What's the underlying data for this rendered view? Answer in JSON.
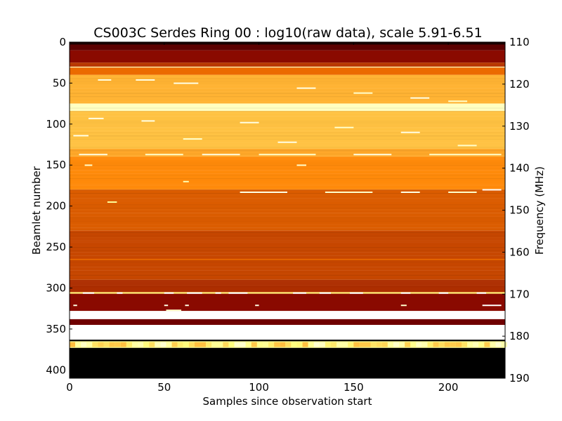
{
  "chart_data": {
    "type": "heatmap",
    "title": "CS003C Serdes Ring 00 : log10(raw data), scale 5.91-6.51",
    "xlabel": "Samples since observation start",
    "ylabel": "Beamlet number",
    "ylabel_right": "Frequency (MHz)",
    "xlim": [
      0,
      230
    ],
    "ylim": [
      410,
      0
    ],
    "ylim_right": [
      190,
      110
    ],
    "xticks": [
      0,
      50,
      100,
      150,
      200
    ],
    "yticks": [
      0,
      50,
      100,
      150,
      200,
      250,
      300,
      350,
      400
    ],
    "yticks_right": [
      110,
      120,
      130,
      140,
      150,
      160,
      170,
      180,
      190
    ],
    "colormap": "afmhot",
    "value_scale": [
      5.91,
      6.51
    ],
    "bands": [
      {
        "from": 0,
        "to": 3,
        "value": 0.05
      },
      {
        "from": 3,
        "to": 10,
        "value": 0.18
      },
      {
        "from": 10,
        "to": 25,
        "value": 0.27
      },
      {
        "from": 25,
        "to": 30,
        "value": 0.36
      },
      {
        "from": 30,
        "to": 31,
        "value": 0.88
      },
      {
        "from": 31,
        "to": 40,
        "value": 0.46
      },
      {
        "from": 40,
        "to": 75,
        "value": 0.6
      },
      {
        "from": 75,
        "to": 84,
        "value": 0.88
      },
      {
        "from": 84,
        "to": 130,
        "value": 0.63
      },
      {
        "from": 130,
        "to": 140,
        "value": 0.58
      },
      {
        "from": 140,
        "to": 180,
        "value": 0.52
      },
      {
        "from": 180,
        "to": 230,
        "value": 0.43
      },
      {
        "from": 230,
        "to": 290,
        "value": 0.39
      },
      {
        "from": 290,
        "to": 305,
        "value": 0.34
      },
      {
        "from": 305,
        "to": 307,
        "value": 0.7
      },
      {
        "from": 307,
        "to": 328,
        "value": 0.27
      },
      {
        "from": 328,
        "to": 338,
        "value": 1.0
      },
      {
        "from": 338,
        "to": 345,
        "value": 0.22
      },
      {
        "from": 345,
        "to": 363,
        "value": 1.0
      },
      {
        "from": 363,
        "to": 365,
        "value": 0.0
      },
      {
        "from": 365,
        "to": 373,
        "value": 0.78
      },
      {
        "from": 373,
        "to": 410,
        "value": 0.0
      }
    ],
    "speckles": [
      [
        306,
        7,
        13,
        1
      ],
      [
        306,
        25,
        28,
        1
      ],
      [
        306,
        50,
        55,
        1
      ],
      [
        306,
        62,
        70,
        1
      ],
      [
        306,
        77,
        80,
        1
      ],
      [
        306,
        84,
        94,
        1
      ],
      [
        306,
        118,
        125,
        1
      ],
      [
        306,
        132,
        138,
        1
      ],
      [
        306,
        148,
        155,
        1
      ],
      [
        306,
        175,
        180,
        1
      ],
      [
        306,
        195,
        200,
        1
      ],
      [
        306,
        215,
        220,
        1
      ],
      [
        321,
        2,
        4,
        0.95
      ],
      [
        321,
        50,
        52,
        0.95
      ],
      [
        321,
        61,
        63,
        0.95
      ],
      [
        321,
        98,
        100,
        0.95
      ],
      [
        321,
        175,
        178,
        0.9
      ],
      [
        321,
        218,
        228,
        1
      ],
      [
        327,
        51,
        59,
        0.9
      ],
      [
        183,
        90,
        115,
        0.95
      ],
      [
        183,
        135,
        160,
        0.9
      ],
      [
        183,
        175,
        185,
        0.95
      ],
      [
        183,
        200,
        215,
        0.9
      ],
      [
        180,
        218,
        228,
        1
      ],
      [
        137,
        5,
        20,
        0.95
      ],
      [
        137,
        40,
        60,
        0.9
      ],
      [
        137,
        70,
        90,
        0.95
      ],
      [
        137,
        100,
        130,
        0.9
      ],
      [
        137,
        150,
        170,
        0.95
      ],
      [
        137,
        190,
        228,
        0.9
      ],
      [
        46,
        15,
        22,
        0.95
      ],
      [
        46,
        35,
        45,
        0.95
      ],
      [
        50,
        55,
        68,
        0.95
      ],
      [
        56,
        120,
        130,
        0.95
      ],
      [
        62,
        150,
        160,
        0.9
      ],
      [
        68,
        180,
        190,
        0.95
      ],
      [
        72,
        200,
        210,
        0.9
      ],
      [
        93,
        10,
        18,
        0.95
      ],
      [
        96,
        38,
        45,
        0.95
      ],
      [
        98,
        90,
        100,
        0.95
      ],
      [
        104,
        140,
        150,
        0.9
      ],
      [
        110,
        175,
        185,
        0.95
      ],
      [
        114,
        2,
        10,
        0.95
      ],
      [
        118,
        60,
        70,
        0.9
      ],
      [
        122,
        110,
        120,
        0.95
      ],
      [
        126,
        205,
        215,
        0.9
      ],
      [
        150,
        8,
        12,
        0.9
      ],
      [
        150,
        120,
        125,
        0.9
      ],
      [
        170,
        60,
        63,
        0.85
      ],
      [
        195,
        20,
        25,
        0.8
      ],
      [
        265,
        0,
        230,
        0.45
      ]
    ],
    "grid": false
  }
}
